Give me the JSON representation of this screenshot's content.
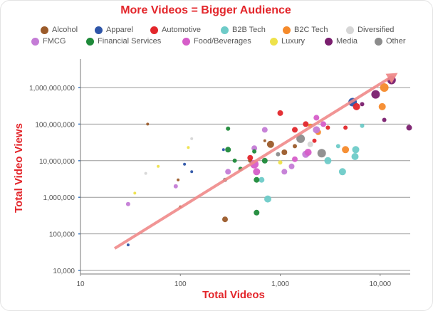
{
  "chart_data": {
    "type": "scatter",
    "title": "More Videos = Bigger Audience",
    "xlabel": "Total Videos",
    "ylabel": "Total Video Views",
    "x_scale": "log",
    "y_scale": "log",
    "xlim": [
      10,
      20000
    ],
    "ylim": [
      8000,
      6000000000
    ],
    "x_ticks": [
      "10",
      "100",
      "1,000",
      "10,000"
    ],
    "y_ticks": [
      "10,000",
      "100,000",
      "1,000,000",
      "10,000,000",
      "100,000,000",
      "1,000,000,000"
    ],
    "grid": "horizontal",
    "legend_position": "top",
    "trend_line": {
      "from": [
        22,
        40000
      ],
      "to": [
        15000,
        2500000000
      ],
      "color": "#ef8a8a"
    },
    "series": [
      {
        "name": "Alcohol",
        "color": "#9b5b2a",
        "points": [
          {
            "x": 47,
            "y": 100000000,
            "s": 2
          },
          {
            "x": 95,
            "y": 3000000,
            "s": 2
          },
          {
            "x": 100,
            "y": 550000,
            "s": 2
          },
          {
            "x": 280,
            "y": 250000,
            "s": 4
          },
          {
            "x": 700,
            "y": 35000000,
            "s": 2
          },
          {
            "x": 800,
            "y": 28000000,
            "s": 5
          },
          {
            "x": 1100,
            "y": 17000000,
            "s": 4
          },
          {
            "x": 1400,
            "y": 25000000,
            "s": 3
          },
          {
            "x": 500,
            "y": 10000000,
            "s": 3
          }
        ]
      },
      {
        "name": "Apparel",
        "color": "#2e55a8",
        "points": [
          {
            "x": 30,
            "y": 50000,
            "s": 2
          },
          {
            "x": 110,
            "y": 8000000,
            "s": 2
          },
          {
            "x": 130,
            "y": 5000000,
            "s": 2
          },
          {
            "x": 5300,
            "y": 400000000,
            "s": 6
          },
          {
            "x": 270,
            "y": 20000000,
            "s": 2
          }
        ]
      },
      {
        "name": "Automotive",
        "color": "#e3262b",
        "points": [
          {
            "x": 1000,
            "y": 200000000,
            "s": 4
          },
          {
            "x": 1800,
            "y": 100000000,
            "s": 4
          },
          {
            "x": 3000,
            "y": 80000000,
            "s": 3
          },
          {
            "x": 4500,
            "y": 80000000,
            "s": 3
          },
          {
            "x": 5800,
            "y": 300000000,
            "s": 5
          },
          {
            "x": 1400,
            "y": 70000000,
            "s": 4
          },
          {
            "x": 2200,
            "y": 35000000,
            "s": 3
          },
          {
            "x": 500,
            "y": 12000000,
            "s": 4
          }
        ]
      },
      {
        "name": "B2B Tech",
        "color": "#6ecbc8",
        "points": [
          {
            "x": 750,
            "y": 900000,
            "s": 5
          },
          {
            "x": 3000,
            "y": 10000000,
            "s": 5
          },
          {
            "x": 4200,
            "y": 5000000,
            "s": 5
          },
          {
            "x": 5700,
            "y": 20000000,
            "s": 5
          },
          {
            "x": 5600,
            "y": 13000000,
            "s": 5
          },
          {
            "x": 6600,
            "y": 90000000,
            "s": 3
          },
          {
            "x": 3800,
            "y": 25000000,
            "s": 3
          },
          {
            "x": 650,
            "y": 3000000,
            "s": 4
          }
        ]
      },
      {
        "name": "B2C Tech",
        "color": "#f58a2b",
        "points": [
          {
            "x": 11000,
            "y": 1000000000,
            "s": 6
          },
          {
            "x": 10500,
            "y": 300000000,
            "s": 5
          },
          {
            "x": 4500,
            "y": 20000000,
            "s": 5
          },
          {
            "x": 2400,
            "y": 60000000,
            "s": 4
          },
          {
            "x": 2000,
            "y": 90000000,
            "s": 3
          }
        ]
      },
      {
        "name": "Diversified",
        "color": "#d6d6d6",
        "points": [
          {
            "x": 130,
            "y": 40000000,
            "s": 2
          },
          {
            "x": 2000,
            "y": 28000000,
            "s": 4
          },
          {
            "x": 45,
            "y": 4500000,
            "s": 2
          }
        ]
      },
      {
        "name": "FMCG",
        "color": "#c47cd6",
        "points": [
          {
            "x": 30,
            "y": 650000,
            "s": 3
          },
          {
            "x": 90,
            "y": 2000000,
            "s": 3
          },
          {
            "x": 300,
            "y": 5000000,
            "s": 4
          },
          {
            "x": 550,
            "y": 22000000,
            "s": 4
          },
          {
            "x": 700,
            "y": 70000000,
            "s": 4
          },
          {
            "x": 1800,
            "y": 15000000,
            "s": 5
          },
          {
            "x": 2300,
            "y": 70000000,
            "s": 5
          },
          {
            "x": 1300,
            "y": 7000000,
            "s": 4
          },
          {
            "x": 1100,
            "y": 5000000,
            "s": 4
          }
        ]
      },
      {
        "name": "Financial Services",
        "color": "#1f8a3a",
        "points": [
          {
            "x": 300,
            "y": 75000000,
            "s": 3
          },
          {
            "x": 300,
            "y": 20000000,
            "s": 4
          },
          {
            "x": 350,
            "y": 10000000,
            "s": 3
          },
          {
            "x": 400,
            "y": 6000000,
            "s": 3
          },
          {
            "x": 580,
            "y": 3000000,
            "s": 4
          },
          {
            "x": 580,
            "y": 380000,
            "s": 4
          },
          {
            "x": 700,
            "y": 10000000,
            "s": 4
          },
          {
            "x": 550,
            "y": 18000000,
            "s": 3
          }
        ]
      },
      {
        "name": "Food/Beverages",
        "color": "#d65ec9",
        "points": [
          {
            "x": 550,
            "y": 8000000,
            "s": 6
          },
          {
            "x": 580,
            "y": 5000000,
            "s": 5
          },
          {
            "x": 2300,
            "y": 150000000,
            "s": 4
          },
          {
            "x": 1900,
            "y": 17000000,
            "s": 5
          },
          {
            "x": 2700,
            "y": 100000000,
            "s": 4
          },
          {
            "x": 1400,
            "y": 11000000,
            "s": 4
          }
        ]
      },
      {
        "name": "Luxury",
        "color": "#eee24a",
        "points": [
          {
            "x": 35,
            "y": 1300000,
            "s": 2
          },
          {
            "x": 60,
            "y": 7000000,
            "s": 2
          },
          {
            "x": 120,
            "y": 23000000,
            "s": 2
          },
          {
            "x": 1000,
            "y": 9000000,
            "s": 3
          }
        ]
      },
      {
        "name": "Media",
        "color": "#7a1e6e",
        "points": [
          {
            "x": 13000,
            "y": 1600000000,
            "s": 6
          },
          {
            "x": 9000,
            "y": 650000000,
            "s": 6
          },
          {
            "x": 19500,
            "y": 80000000,
            "s": 4
          },
          {
            "x": 11000,
            "y": 130000000,
            "s": 3
          },
          {
            "x": 6600,
            "y": 350000000,
            "s": 3
          }
        ]
      },
      {
        "name": "Other",
        "color": "#8c8c8c",
        "points": [
          {
            "x": 1600,
            "y": 40000000,
            "s": 6
          },
          {
            "x": 2600,
            "y": 16000000,
            "s": 6
          },
          {
            "x": 280,
            "y": 3000000,
            "s": 3
          },
          {
            "x": 950,
            "y": 15000000,
            "s": 3
          }
        ]
      }
    ]
  }
}
